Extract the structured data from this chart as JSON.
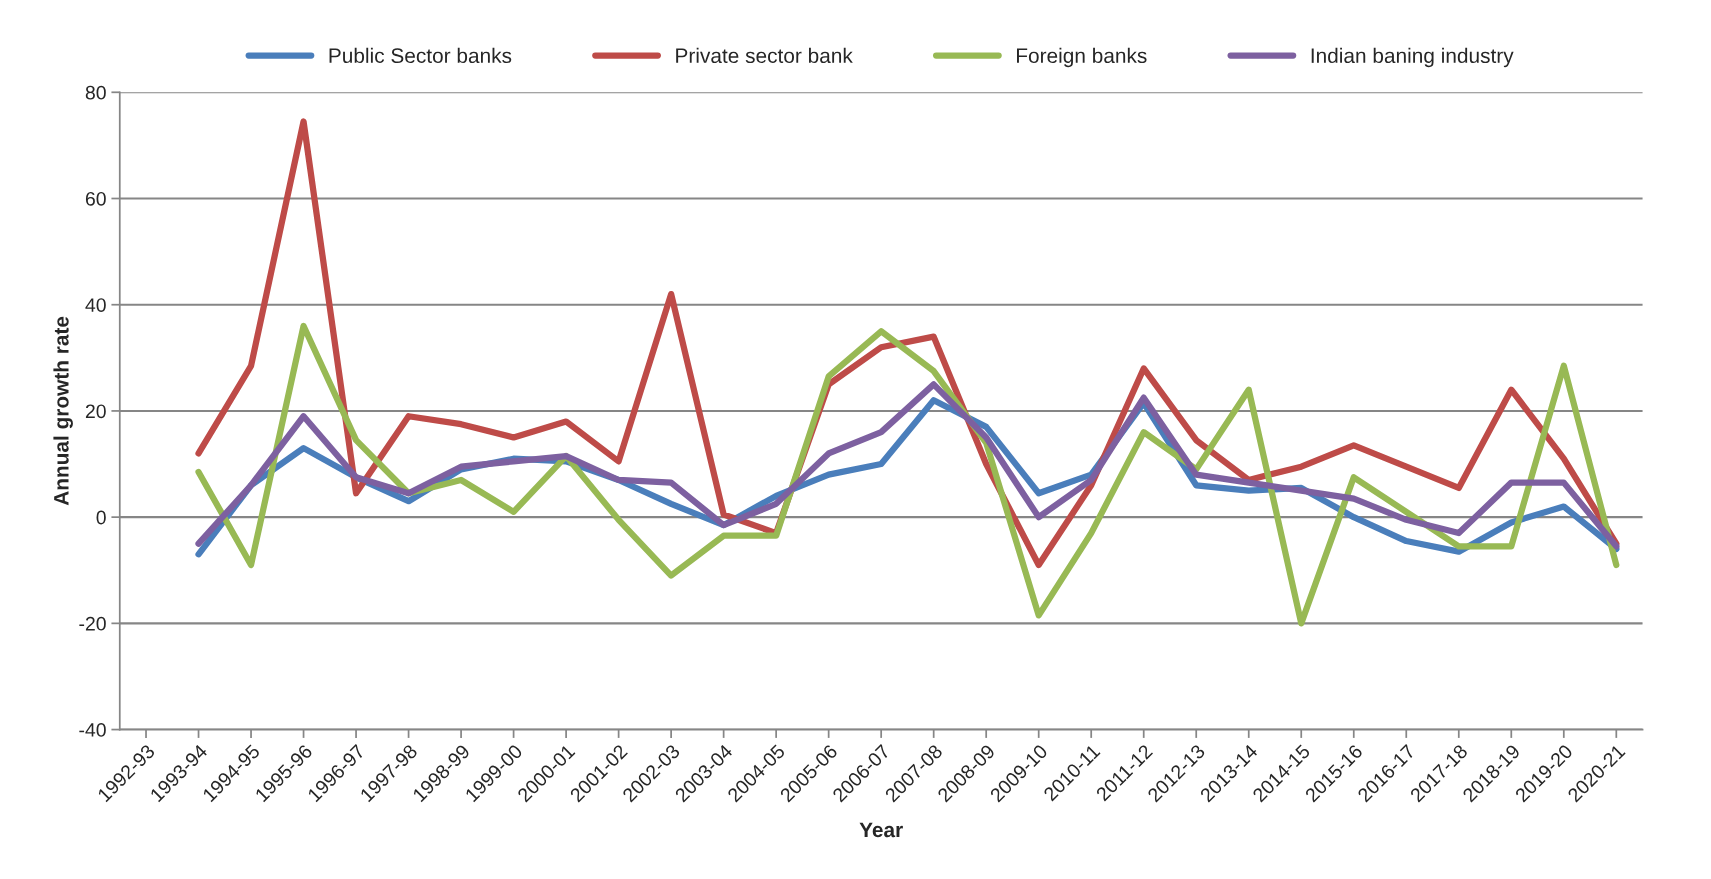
{
  "chart_data": {
    "type": "line",
    "xlabel": "Year",
    "ylabel": "Annual growth rate",
    "categories": [
      "1992-93",
      "1993-94",
      "1994-95",
      "1995-96",
      "1996-97",
      "1997-98",
      "1998-99",
      "1999-00",
      "2000-01",
      "2001-02",
      "2002-03",
      "2003-04",
      "2004-05",
      "2005-06",
      "2006-07",
      "2007-08",
      "2008-09",
      "2009-10",
      "2010-11",
      "2011-12",
      "2012-13",
      "2013-14",
      "2014-15",
      "2015-16",
      "2016-17",
      "2017-18",
      "2018-19",
      "2019-20",
      "2020-21"
    ],
    "series": [
      {
        "name": "Public Sector banks",
        "color": "#4a7ebb",
        "values": [
          null,
          -7,
          6,
          13,
          7.5,
          3,
          9,
          11,
          10.5,
          7,
          2.5,
          -1.5,
          4,
          8,
          10,
          22,
          17,
          4.5,
          8,
          21.5,
          6,
          5,
          5.5,
          0,
          -4.5,
          -6.5,
          -1,
          2,
          -6
        ]
      },
      {
        "name": "Private sector bank",
        "color": "#be4b48",
        "values": [
          null,
          12,
          28.5,
          74.5,
          4.5,
          19,
          17.5,
          15,
          18,
          10.5,
          42,
          0.5,
          -3,
          25,
          32,
          34,
          10,
          -9,
          6,
          28,
          14.5,
          7,
          9.5,
          13.5,
          9.5,
          5.5,
          24,
          11,
          -5
        ]
      },
      {
        "name": "Foreign banks",
        "color": "#98b954",
        "values": [
          null,
          8.5,
          -9,
          36,
          14.5,
          4.5,
          7,
          1,
          11.5,
          -0.5,
          -11,
          -3.5,
          -3.5,
          26.5,
          35,
          27.5,
          14,
          -18.5,
          -3,
          16,
          9,
          24,
          -20,
          7.5,
          1,
          -5.5,
          -5.5,
          28.5,
          -9
        ]
      },
      {
        "name": "Indian baning industry",
        "color": "#7d60a0",
        "values": [
          null,
          -5,
          6,
          19,
          7.5,
          4.5,
          9.5,
          10.5,
          11.5,
          7,
          6.5,
          -1.5,
          2.5,
          12,
          16,
          25,
          15,
          0,
          7,
          22.5,
          8,
          6.5,
          5,
          3.5,
          -0.5,
          -3,
          6.5,
          6.5,
          -5.5
        ]
      }
    ],
    "ylim": [
      -40,
      80
    ],
    "yticks": [
      -40,
      -20,
      0,
      20,
      40,
      60,
      80
    ],
    "grid": "y",
    "legend": "top",
    "marker": "none",
    "line_style": "solid"
  }
}
